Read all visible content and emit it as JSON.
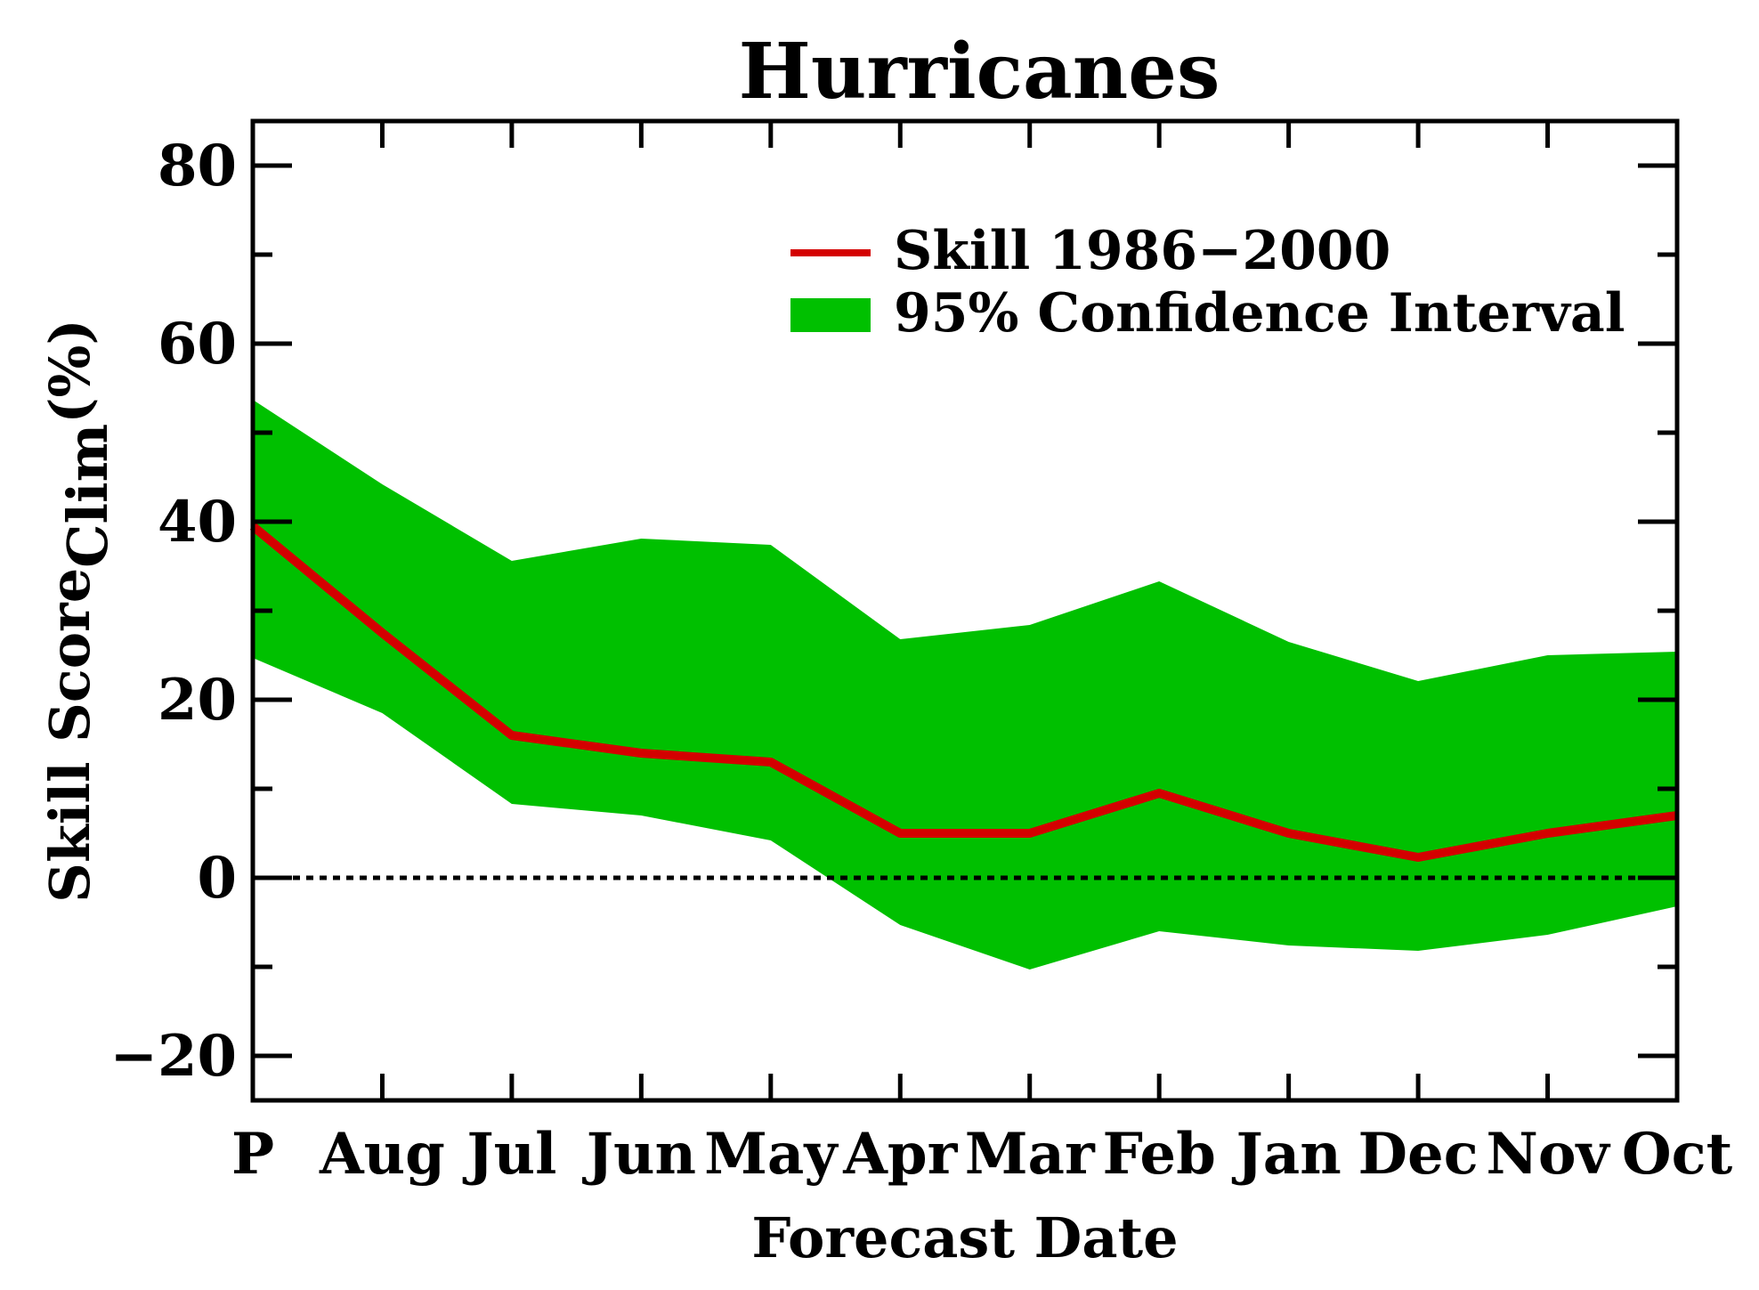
{
  "chart_data": {
    "type": "area",
    "title": "Hurricanes",
    "xlabel": "Forecast Date",
    "ylabel": {
      "main": "Skill Score",
      "subscript": "Clim",
      "unit": "(%)"
    },
    "categories": [
      "P",
      "Aug",
      "Jul",
      "Jun",
      "May",
      "Apr",
      "Mar",
      "Feb",
      "Jan",
      "Dec",
      "Nov",
      "Oct"
    ],
    "ylim": [
      -25,
      85
    ],
    "yticks": [
      -20,
      0,
      20,
      40,
      60,
      80
    ],
    "ytick_labels": [
      "−20",
      "0",
      "20",
      "40",
      "60",
      "80"
    ],
    "series": [
      {
        "name": "Skill 1986−2000",
        "kind": "line",
        "color": "#d40000",
        "values": [
          39.5,
          27.5,
          16,
          14,
          13,
          5,
          5,
          9.5,
          5,
          2.3,
          5,
          7
        ]
      },
      {
        "name": "95% Confidence Interval",
        "kind": "band",
        "color": "#00c000",
        "lower": [
          24.7,
          18.5,
          8.3,
          7,
          4.2,
          -5.3,
          -10.3,
          -6,
          -7.6,
          -8.2,
          -6.4,
          -3.2
        ],
        "upper": [
          53.7,
          44.2,
          35.6,
          38.1,
          37.4,
          26.8,
          28.4,
          33.3,
          26.5,
          22.1,
          25,
          25.4
        ]
      }
    ],
    "reference_line": {
      "y": 0,
      "style": "dotted"
    },
    "grid": false,
    "legend": {
      "position": "top-right"
    }
  }
}
